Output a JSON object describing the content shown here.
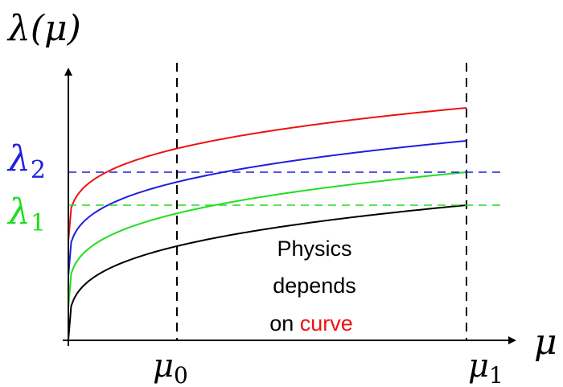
{
  "axes": {
    "y_label": "λ(μ)",
    "x_label": "μ",
    "x_ticks": [
      {
        "base": "μ",
        "sub": "0"
      },
      {
        "base": "μ",
        "sub": "1"
      }
    ]
  },
  "levels": [
    {
      "base": "λ",
      "sub": "2",
      "color": "#1f1fdd"
    },
    {
      "base": "λ",
      "sub": "1",
      "color": "#22dd22"
    }
  ],
  "annotation": {
    "line1": "Physics",
    "line2": "depends",
    "line3_prefix": "on ",
    "line3_highlight": "curve",
    "highlight_color": "#ee1111"
  },
  "curves": [
    {
      "color": "#ee1111"
    },
    {
      "color": "#1f1fdd"
    },
    {
      "color": "#22dd22"
    },
    {
      "color": "#000000"
    }
  ]
}
